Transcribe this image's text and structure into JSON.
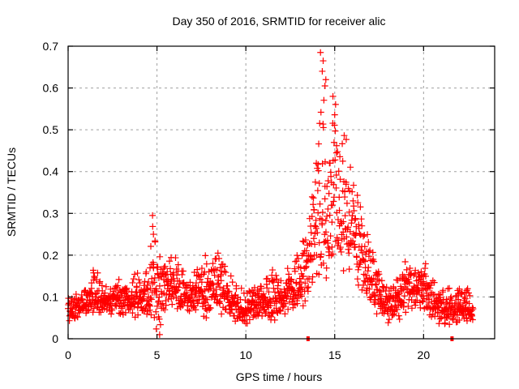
{
  "chart_data": {
    "type": "scatter",
    "title": "Day 350 of 2016, SRMTID for receiver alic",
    "xlabel": "GPS time / hours",
    "ylabel": "SRMTID / TECUs",
    "xlim": [
      0,
      24
    ],
    "ylim": [
      0,
      0.7
    ],
    "xticks": [
      0,
      5,
      10,
      15,
      20
    ],
    "xtick_labels": [
      "0",
      "5",
      "10",
      "15",
      "20"
    ],
    "yticks": [
      0,
      0.1,
      0.2,
      0.3,
      0.4,
      0.5,
      0.6,
      0.7
    ],
    "ytick_labels": [
      "0",
      "0.1",
      "0.2",
      "0.3",
      "0.4",
      "0.5",
      "0.6",
      "0.7"
    ],
    "grid": true,
    "legend": "none",
    "marker": "plus",
    "color": "#ff0000",
    "series": [
      {
        "name": "SRMTID",
        "envelope": [
          {
            "x": 0.0,
            "y_min": 0.04,
            "y_mean": 0.07,
            "y_max": 0.1
          },
          {
            "x": 0.5,
            "y_min": 0.04,
            "y_mean": 0.07,
            "y_max": 0.12
          },
          {
            "x": 1.0,
            "y_min": 0.04,
            "y_mean": 0.08,
            "y_max": 0.13
          },
          {
            "x": 1.5,
            "y_min": 0.05,
            "y_mean": 0.1,
            "y_max": 0.19
          },
          {
            "x": 2.0,
            "y_min": 0.05,
            "y_mean": 0.09,
            "y_max": 0.13
          },
          {
            "x": 2.5,
            "y_min": 0.06,
            "y_mean": 0.1,
            "y_max": 0.13
          },
          {
            "x": 3.0,
            "y_min": 0.05,
            "y_mean": 0.1,
            "y_max": 0.15
          },
          {
            "x": 3.5,
            "y_min": 0.05,
            "y_mean": 0.1,
            "y_max": 0.16
          },
          {
            "x": 4.0,
            "y_min": 0.04,
            "y_mean": 0.09,
            "y_max": 0.18
          },
          {
            "x": 4.5,
            "y_min": 0.04,
            "y_mean": 0.1,
            "y_max": 0.19
          },
          {
            "x": 4.8,
            "y_min": 0.03,
            "y_mean": 0.14,
            "y_max": 0.295
          },
          {
            "x": 5.0,
            "y_min": 0.01,
            "y_mean": 0.11,
            "y_max": 0.21
          },
          {
            "x": 5.5,
            "y_min": 0.06,
            "y_mean": 0.13,
            "y_max": 0.2
          },
          {
            "x": 6.0,
            "y_min": 0.06,
            "y_mean": 0.14,
            "y_max": 0.24
          },
          {
            "x": 6.5,
            "y_min": 0.05,
            "y_mean": 0.11,
            "y_max": 0.18
          },
          {
            "x": 7.0,
            "y_min": 0.05,
            "y_mean": 0.09,
            "y_max": 0.15
          },
          {
            "x": 7.5,
            "y_min": 0.05,
            "y_mean": 0.12,
            "y_max": 0.24
          },
          {
            "x": 8.0,
            "y_min": 0.05,
            "y_mean": 0.12,
            "y_max": 0.19
          },
          {
            "x": 8.5,
            "y_min": 0.05,
            "y_mean": 0.12,
            "y_max": 0.23
          },
          {
            "x": 9.0,
            "y_min": 0.05,
            "y_mean": 0.1,
            "y_max": 0.17
          },
          {
            "x": 9.5,
            "y_min": 0.03,
            "y_mean": 0.08,
            "y_max": 0.14
          },
          {
            "x": 10.0,
            "y_min": 0.02,
            "y_mean": 0.07,
            "y_max": 0.12
          },
          {
            "x": 10.5,
            "y_min": 0.04,
            "y_mean": 0.08,
            "y_max": 0.14
          },
          {
            "x": 11.0,
            "y_min": 0.04,
            "y_mean": 0.09,
            "y_max": 0.15
          },
          {
            "x": 11.5,
            "y_min": 0.04,
            "y_mean": 0.09,
            "y_max": 0.19
          },
          {
            "x": 12.0,
            "y_min": 0.04,
            "y_mean": 0.1,
            "y_max": 0.18
          },
          {
            "x": 12.5,
            "y_min": 0.05,
            "y_mean": 0.11,
            "y_max": 0.18
          },
          {
            "x": 13.0,
            "y_min": 0.06,
            "y_mean": 0.13,
            "y_max": 0.24
          },
          {
            "x": 13.5,
            "y_min": 0.07,
            "y_mean": 0.18,
            "y_max": 0.28
          },
          {
            "x": 14.0,
            "y_min": 0.1,
            "y_mean": 0.3,
            "y_max": 0.54
          },
          {
            "x": 14.3,
            "y_min": 0.15,
            "y_mean": 0.35,
            "y_max": 0.685
          },
          {
            "x": 14.6,
            "y_min": 0.12,
            "y_mean": 0.3,
            "y_max": 0.61
          },
          {
            "x": 15.0,
            "y_min": 0.16,
            "y_mean": 0.32,
            "y_max": 0.58
          },
          {
            "x": 15.5,
            "y_min": 0.14,
            "y_mean": 0.3,
            "y_max": 0.52
          },
          {
            "x": 16.0,
            "y_min": 0.14,
            "y_mean": 0.27,
            "y_max": 0.45
          },
          {
            "x": 16.5,
            "y_min": 0.1,
            "y_mean": 0.2,
            "y_max": 0.32
          },
          {
            "x": 17.0,
            "y_min": 0.07,
            "y_mean": 0.15,
            "y_max": 0.26
          },
          {
            "x": 17.5,
            "y_min": 0.05,
            "y_mean": 0.1,
            "y_max": 0.17
          },
          {
            "x": 18.0,
            "y_min": 0.03,
            "y_mean": 0.08,
            "y_max": 0.13
          },
          {
            "x": 18.5,
            "y_min": 0.03,
            "y_mean": 0.09,
            "y_max": 0.17
          },
          {
            "x": 19.0,
            "y_min": 0.05,
            "y_mean": 0.11,
            "y_max": 0.19
          },
          {
            "x": 19.5,
            "y_min": 0.06,
            "y_mean": 0.12,
            "y_max": 0.2
          },
          {
            "x": 20.0,
            "y_min": 0.06,
            "y_mean": 0.12,
            "y_max": 0.19
          },
          {
            "x": 20.5,
            "y_min": 0.04,
            "y_mean": 0.09,
            "y_max": 0.16
          },
          {
            "x": 21.0,
            "y_min": 0.02,
            "y_mean": 0.07,
            "y_max": 0.15
          },
          {
            "x": 21.5,
            "y_min": 0.03,
            "y_mean": 0.07,
            "y_max": 0.12
          },
          {
            "x": 22.0,
            "y_min": 0.03,
            "y_mean": 0.07,
            "y_max": 0.13
          },
          {
            "x": 22.5,
            "y_min": 0.04,
            "y_mean": 0.07,
            "y_max": 0.12
          },
          {
            "x": 22.8,
            "y_min": 0.04,
            "y_mean": 0.07,
            "y_max": 0.11
          }
        ],
        "outliers": [
          {
            "x": 4.75,
            "y": 0.295
          },
          {
            "x": 4.8,
            "y": 0.25
          },
          {
            "x": 5.15,
            "y": 0.01
          },
          {
            "x": 14.2,
            "y": 0.685
          },
          {
            "x": 14.35,
            "y": 0.665
          },
          {
            "x": 14.3,
            "y": 0.64
          },
          {
            "x": 14.5,
            "y": 0.62
          },
          {
            "x": 14.45,
            "y": 0.605
          },
          {
            "x": 14.9,
            "y": 0.58
          },
          {
            "x": 13.5,
            "y": 0.0
          },
          {
            "x": 21.6,
            "y": 0.0
          }
        ]
      }
    ]
  }
}
